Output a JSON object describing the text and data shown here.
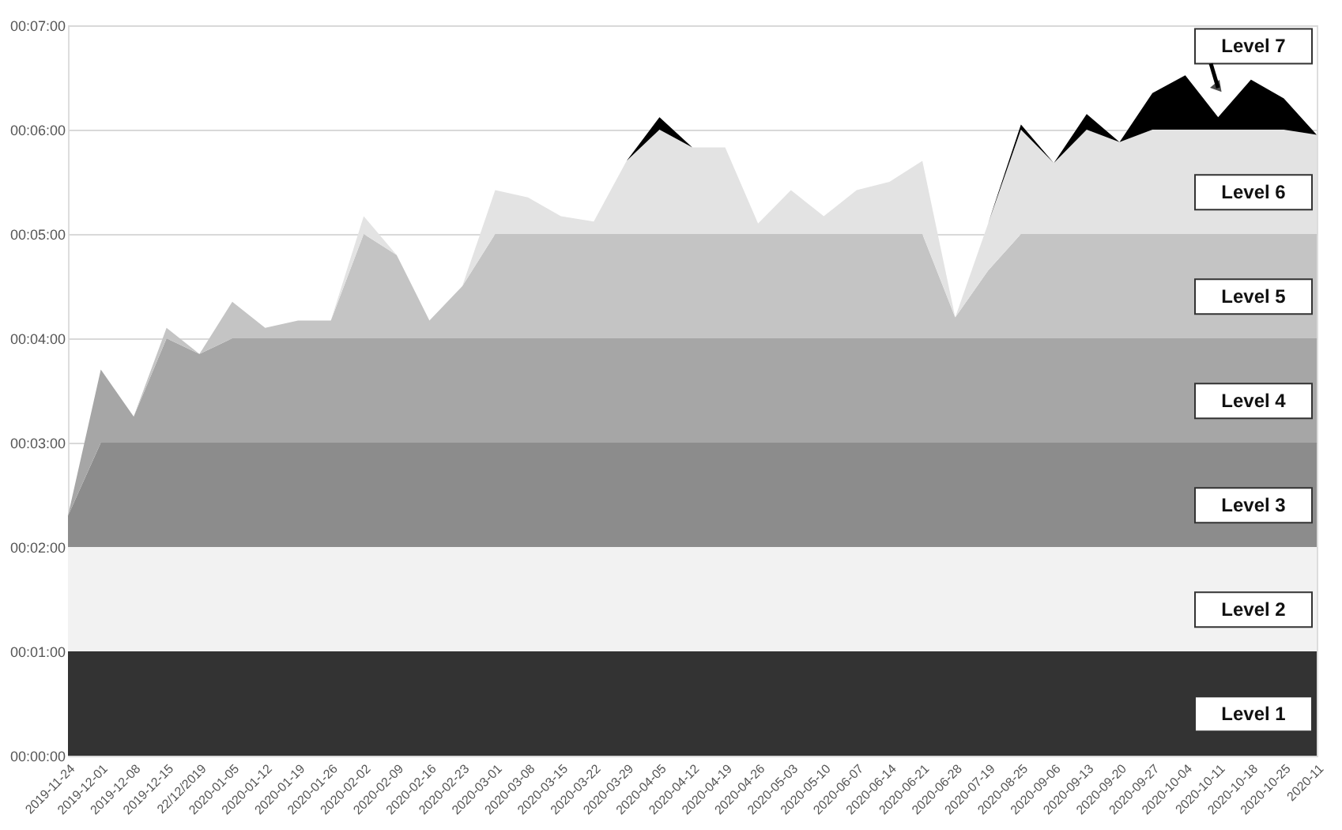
{
  "chart_data": {
    "type": "area",
    "stacked": true,
    "categories": [
      "2019-11-24",
      "2019-12-01",
      "2019-12-08",
      "2019-12-15",
      "22/12/2019",
      "2020-01-05",
      "2020-01-12",
      "2020-01-19",
      "2020-01-26",
      "2020-02-02",
      "2020-02-09",
      "2020-02-16",
      "2020-02-23",
      "2020-03-01",
      "2020-03-08",
      "2020-03-15",
      "2020-03-22",
      "2020-03-29",
      "2020-04-05",
      "2020-04-12",
      "2020-04-19",
      "2020-04-26",
      "2020-05-03",
      "2020-05-10",
      "2020-06-07",
      "2020-06-14",
      "2020-06-21",
      "2020-06-28",
      "2020-07-19",
      "2020-08-25",
      "2020-09-06",
      "2020-09-13",
      "2020-09-20",
      "2020-09-27",
      "2020-10-04",
      "2020-10-11",
      "2020-10-18",
      "2020-10-25",
      "2020-11"
    ],
    "series": [
      {
        "name": "Level 1",
        "color": "#333333",
        "values": [
          1,
          1,
          1,
          1,
          1,
          1,
          1,
          1,
          1,
          1,
          1,
          1,
          1,
          1,
          1,
          1,
          1,
          1,
          1,
          1,
          1,
          1,
          1,
          1,
          1,
          1,
          1,
          1,
          1,
          1,
          1,
          1,
          1,
          1,
          1,
          1,
          1,
          1,
          1
        ]
      },
      {
        "name": "Level 2",
        "color": "#f2f2f2",
        "values": [
          1,
          1,
          1,
          1,
          1,
          1,
          1,
          1,
          1,
          1,
          1,
          1,
          1,
          1,
          1,
          1,
          1,
          1,
          1,
          1,
          1,
          1,
          1,
          1,
          1,
          1,
          1,
          1,
          1,
          1,
          1,
          1,
          1,
          1,
          1,
          1,
          1,
          1,
          1
        ]
      },
      {
        "name": "Level 3",
        "color": "#8c8c8c",
        "values": [
          0.3,
          1,
          1,
          1,
          1,
          1,
          1,
          1,
          1,
          1,
          1,
          1,
          1,
          1,
          1,
          1,
          1,
          1,
          1,
          1,
          1,
          1,
          1,
          1,
          1,
          1,
          1,
          1,
          1,
          1,
          1,
          1,
          1,
          1,
          1,
          1,
          1,
          1,
          1
        ]
      },
      {
        "name": "Level 4",
        "color": "#a6a6a6",
        "values": [
          0,
          0.7,
          0.25,
          1,
          0.85,
          1,
          1,
          1,
          1,
          1,
          1,
          1,
          1,
          1,
          1,
          1,
          1,
          1,
          1,
          1,
          1,
          1,
          1,
          1,
          1,
          1,
          1,
          1,
          1,
          1,
          1,
          1,
          1,
          1,
          1,
          1,
          1,
          1,
          1
        ]
      },
      {
        "name": "Level 5",
        "color": "#c4c4c4",
        "values": [
          0,
          0,
          0,
          0.1,
          0,
          0.35,
          0.1,
          0.17,
          0.17,
          1,
          0.8,
          0.17,
          0.5,
          1,
          1,
          1,
          1,
          1,
          1,
          1,
          1,
          1,
          1,
          1,
          1,
          1,
          1,
          0.2,
          0.65,
          1,
          1,
          1,
          1,
          1,
          1,
          1,
          1,
          1,
          1
        ]
      },
      {
        "name": "Level 6",
        "color": "#e3e3e3",
        "values": [
          0,
          0,
          0,
          0,
          0,
          0,
          0,
          0,
          0,
          0.17,
          0,
          0,
          0,
          0.42,
          0.35,
          0.17,
          0.12,
          0.7,
          1,
          0.83,
          0.83,
          0.1,
          0.42,
          0.17,
          0.42,
          0.5,
          0.7,
          0,
          0.45,
          1,
          0.68,
          1,
          0.88,
          1,
          1,
          1,
          1,
          1,
          0.95
        ]
      },
      {
        "name": "Level 7",
        "color": "#000000",
        "values": [
          0,
          0,
          0,
          0,
          0,
          0,
          0,
          0,
          0,
          0,
          0,
          0,
          0,
          0,
          0,
          0,
          0,
          0,
          0.12,
          0,
          0,
          0,
          0,
          0,
          0,
          0,
          0,
          0,
          0,
          0.05,
          0,
          0.15,
          0,
          0.35,
          0.52,
          0.12,
          0.48,
          0.3,
          0
        ]
      }
    ],
    "ylim": [
      0,
      7
    ],
    "yticks": [
      {
        "value": 0,
        "label": "00:00:00"
      },
      {
        "value": 1,
        "label": "00:01:00"
      },
      {
        "value": 2,
        "label": "00:02:00"
      },
      {
        "value": 3,
        "label": "00:03:00"
      },
      {
        "value": 4,
        "label": "00:04:00"
      },
      {
        "value": 5,
        "label": "00:05:00"
      },
      {
        "value": 6,
        "label": "00:06:00"
      },
      {
        "value": 7,
        "label": "00:07:00"
      }
    ],
    "grid": "y",
    "legend": false
  }
}
